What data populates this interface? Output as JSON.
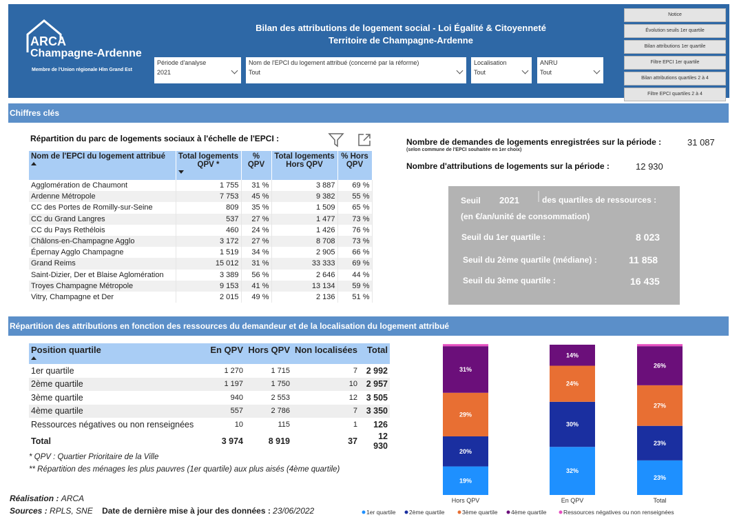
{
  "header": {
    "logo_l1": "ARCA",
    "logo_l2": "Champagne-Ardenne",
    "logo_l3": "Membre de l'Union régionale Hlm Grand Est",
    "title_l1": "Bilan des attributions de logement social - Loi Égalité & Citoyenneté",
    "title_l2": "Territoire de Champagne-Ardenne"
  },
  "filters": {
    "periode": {
      "label": "Période d'analyse",
      "value": "2021"
    },
    "epci": {
      "label": "Nom de l'EPCI du logement attribué (concerné par la réforme)",
      "value": "Tout"
    },
    "localisation": {
      "label": "Localisation",
      "value": "Tout"
    },
    "anru": {
      "label": "ANRU",
      "value": "Tout"
    }
  },
  "nav": [
    "Notice",
    "Évolution seuils 1er quartile",
    "Bilan attributions 1er quartile",
    "Filtre EPCI 1er quartile",
    "Bilan attributions quartiles 2 à 4",
    "Filtre EPCI quartiles 2 à 4"
  ],
  "section1": "Chiffres clés",
  "section2": "Répartition des attributions en fonction des ressources du demandeur et de la localisation du logement attribué",
  "parc": {
    "title": "Répartition du parc de logements sociaux à l'échelle de l'EPCI :",
    "headers": [
      "Nom de l'EPCI du logement attribué",
      "Total logements QPV *",
      "% QPV",
      "Total logements Hors QPV",
      "% Hors QPV"
    ],
    "rows": [
      [
        "Agglomération de Chaumont",
        "1 755",
        "31 %",
        "3 887",
        "69 %"
      ],
      [
        "Ardenne Métropole",
        "7 753",
        "45 %",
        "9 382",
        "55 %"
      ],
      [
        "CC des Portes de Romilly-sur-Seine",
        "809",
        "35 %",
        "1 509",
        "65 %"
      ],
      [
        "CC du Grand Langres",
        "537",
        "27 %",
        "1 477",
        "73 %"
      ],
      [
        "CC du Pays Rethélois",
        "460",
        "24 %",
        "1 426",
        "76 %"
      ],
      [
        "Châlons-en-Champagne Agglo",
        "3 172",
        "27 %",
        "8 708",
        "73 %"
      ],
      [
        "Épernay Agglo Champagne",
        "1 519",
        "34 %",
        "2 905",
        "66 %"
      ],
      [
        "Grand Reims",
        "15 012",
        "31 %",
        "33 333",
        "69 %"
      ],
      [
        "Saint-Dizier, Der et Blaise Aglomération",
        "3 389",
        "56 %",
        "2 646",
        "44 %"
      ],
      [
        "Troyes Champagne Métropole",
        "9 153",
        "41 %",
        "13 134",
        "59 %"
      ],
      [
        "Vitry, Champagne et Der",
        "2 015",
        "49 %",
        "2 136",
        "51 %"
      ]
    ]
  },
  "kpis": {
    "demandes_label": "Nombre de demandes de logements enregistrées sur la période :",
    "demandes_note": "(selon commune de l'EPCI souhaitée en 1er choix)",
    "demandes_value": "31 087",
    "attributions_label": "Nombre d'attributions de logements sur la période :",
    "attributions_value": "12 930"
  },
  "seuils": {
    "seuil_word": "Seuil",
    "year": "2021",
    "title_rest": "des quartiles de ressources :",
    "unit": "(en €/an/unité de consommation)",
    "q1_label": "Seuil du 1er quartile :",
    "q1_value": "8 023",
    "q2_label": "Seuil du 2ème quartile (médiane) :",
    "q2_value": "11 858",
    "q3_label": "Seuil du 3ème quartile :",
    "q3_value": "16 435"
  },
  "quartiles_table": {
    "headers": [
      "Position quartile",
      "En QPV",
      "Hors QPV",
      "Non localisées",
      "Total"
    ],
    "rows": [
      [
        "1er quartile",
        "1 270",
        "1 715",
        "7",
        "2 992"
      ],
      [
        "2ème quartile",
        "1 197",
        "1 750",
        "10",
        "2 957"
      ],
      [
        "3ème quartile",
        "940",
        "2 553",
        "12",
        "3 505"
      ],
      [
        "4ème quartile",
        "557",
        "2 786",
        "7",
        "3 350"
      ],
      [
        "Ressources négatives ou non renseignées",
        "10",
        "115",
        "1",
        "126"
      ]
    ],
    "total": [
      "Total",
      "3 974",
      "8 919",
      "37",
      "12 930"
    ]
  },
  "notes": {
    "n1": "* QPV : Quartier Prioritaire de la Ville",
    "n2": "** Répartition des ménages les plus pauvres (1er quartile) aux plus aisés (4ème quartile)"
  },
  "footer": {
    "realisation_label": "Réalisation :",
    "realisation_value": "ARCA",
    "sources_label": "Sources :",
    "sources_value": "RPLS, SNE",
    "date_label": "Date de dernière mise à jour des données :",
    "date_value": "23/06/2022"
  },
  "colors": {
    "header": "#2e68a6",
    "section": "#5b8fc9",
    "table_header": "#a9cdf5",
    "q1": "#1e90ff",
    "q2": "#1a2fa0",
    "q3": "#e86f33",
    "q4": "#6b0f7a",
    "neg": "#e64fc0"
  },
  "chart_data": {
    "type": "bar",
    "stacked": true,
    "percent": true,
    "categories": [
      "Hors QPV",
      "En QPV",
      "Total"
    ],
    "series": [
      {
        "name": "1er quartile",
        "color": "#1e90ff",
        "values": [
          19,
          32,
          23
        ]
      },
      {
        "name": "2ème quartile",
        "color": "#1a2fa0",
        "values": [
          20,
          30,
          23
        ]
      },
      {
        "name": "3ème quartile",
        "color": "#e86f33",
        "values": [
          29,
          24,
          27
        ]
      },
      {
        "name": "4ème quartile",
        "color": "#6b0f7a",
        "values": [
          31,
          14,
          26
        ]
      },
      {
        "name": "Ressources négatives ou non renseignées",
        "color": "#e64fc0",
        "values": [
          1,
          0,
          1
        ]
      }
    ],
    "labels": [
      [
        "19%",
        "20%",
        "29%",
        "31%",
        ""
      ],
      [
        "32%",
        "30%",
        "24%",
        "14%",
        ""
      ],
      [
        "23%",
        "23%",
        "27%",
        "26%",
        ""
      ]
    ],
    "ylim": [
      0,
      100
    ],
    "legend": "bottom"
  }
}
